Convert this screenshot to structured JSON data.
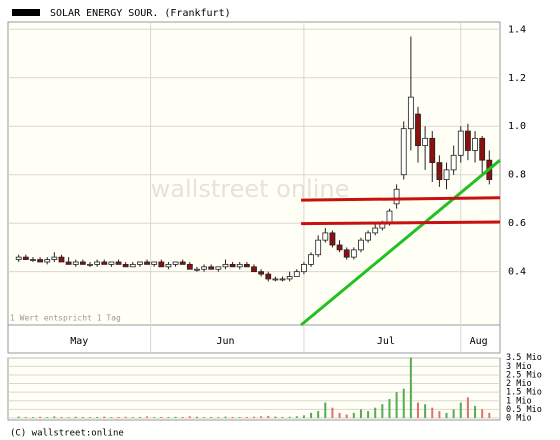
{
  "chart_data": [
    {
      "type": "candlestick",
      "legend": "SOLAR ENERGY SOUR. (Frankfurt)",
      "annotation": "1 Wert entspricht 1 Tag",
      "watermark": "wallstreet online",
      "open": [
        0.45,
        0.46,
        0.45,
        0.45,
        0.44,
        0.45,
        0.46,
        0.44,
        0.43,
        0.44,
        0.43,
        0.43,
        0.44,
        0.43,
        0.44,
        0.43,
        0.42,
        0.43,
        0.44,
        0.43,
        0.44,
        0.42,
        0.43,
        0.44,
        0.43,
        0.41,
        0.41,
        0.42,
        0.41,
        0.42,
        0.43,
        0.42,
        0.43,
        0.42,
        0.4,
        0.39,
        0.37,
        0.37,
        0.37,
        0.38,
        0.4,
        0.43,
        0.47,
        0.53,
        0.56,
        0.51,
        0.49,
        0.46,
        0.49,
        0.53,
        0.56,
        0.58,
        0.6,
        0.68,
        0.8,
        0.99,
        1.05,
        0.92,
        0.95,
        0.85,
        0.78,
        0.82,
        0.88,
        0.98,
        0.9,
        0.95,
        0.86
      ],
      "high": [
        0.47,
        0.47,
        0.46,
        0.46,
        0.46,
        0.48,
        0.47,
        0.46,
        0.45,
        0.45,
        0.44,
        0.45,
        0.45,
        0.44,
        0.45,
        0.44,
        0.44,
        0.44,
        0.45,
        0.44,
        0.45,
        0.44,
        0.44,
        0.45,
        0.44,
        0.42,
        0.43,
        0.43,
        0.42,
        0.45,
        0.44,
        0.44,
        0.44,
        0.43,
        0.41,
        0.4,
        0.38,
        0.38,
        0.4,
        0.41,
        0.44,
        0.48,
        0.55,
        0.58,
        0.57,
        0.53,
        0.5,
        0.5,
        0.54,
        0.57,
        0.6,
        0.61,
        0.66,
        0.76,
        1.02,
        1.37,
        1.08,
        1.0,
        0.98,
        0.88,
        0.85,
        0.92,
        1.0,
        1.01,
        0.98,
        0.96,
        0.9
      ],
      "low": [
        0.44,
        0.45,
        0.44,
        0.44,
        0.43,
        0.44,
        0.44,
        0.43,
        0.42,
        0.43,
        0.42,
        0.42,
        0.43,
        0.42,
        0.43,
        0.42,
        0.42,
        0.42,
        0.43,
        0.42,
        0.42,
        0.41,
        0.42,
        0.43,
        0.41,
        0.4,
        0.4,
        0.41,
        0.4,
        0.41,
        0.42,
        0.41,
        0.42,
        0.4,
        0.38,
        0.36,
        0.36,
        0.36,
        0.36,
        0.38,
        0.39,
        0.42,
        0.46,
        0.52,
        0.5,
        0.48,
        0.45,
        0.45,
        0.48,
        0.52,
        0.55,
        0.57,
        0.59,
        0.66,
        0.78,
        0.9,
        0.85,
        0.82,
        0.77,
        0.75,
        0.74,
        0.8,
        0.85,
        0.86,
        0.85,
        0.8,
        0.76
      ],
      "close": [
        0.46,
        0.45,
        0.45,
        0.44,
        0.45,
        0.46,
        0.44,
        0.43,
        0.44,
        0.43,
        0.43,
        0.44,
        0.43,
        0.44,
        0.43,
        0.42,
        0.43,
        0.44,
        0.43,
        0.44,
        0.42,
        0.43,
        0.44,
        0.43,
        0.41,
        0.41,
        0.42,
        0.41,
        0.42,
        0.43,
        0.42,
        0.43,
        0.42,
        0.4,
        0.39,
        0.37,
        0.37,
        0.37,
        0.38,
        0.4,
        0.43,
        0.47,
        0.53,
        0.56,
        0.51,
        0.49,
        0.46,
        0.49,
        0.53,
        0.56,
        0.58,
        0.6,
        0.65,
        0.74,
        0.99,
        1.12,
        0.92,
        0.95,
        0.85,
        0.78,
        0.82,
        0.88,
        0.98,
        0.9,
        0.95,
        0.86,
        0.78
      ],
      "up_color": "#ffffff",
      "down_color": "#8b1010",
      "xlim": [
        -1.5,
        67.5
      ],
      "xticks": [
        {
          "value": 8.5,
          "label": "May"
        },
        {
          "value": 29,
          "label": "Jun"
        },
        {
          "value": 51.5,
          "label": "Jul"
        },
        {
          "value": 64.5,
          "label": "Aug"
        }
      ],
      "xgrid": [
        18.5,
        40,
        62
      ],
      "ylim": [
        0.18,
        1.43
      ],
      "yticks": [
        0.4,
        0.6,
        0.8,
        {
          "value": 1.0,
          "label": "1.0"
        },
        1.2,
        1.4
      ],
      "trendlines": [
        {
          "color": "#22c022",
          "x": [
            39.6,
            67.5
          ],
          "y": [
            0.18,
            0.86
          ]
        },
        {
          "color": "#c81010",
          "x": [
            39.6,
            67.5
          ],
          "y": [
            0.695,
            0.705
          ]
        },
        {
          "color": "#c81010",
          "x": [
            39.6,
            67.5
          ],
          "y": [
            0.598,
            0.605
          ]
        }
      ]
    },
    {
      "type": "bar",
      "values": [
        0.08,
        0.06,
        0.05,
        0.07,
        0.05,
        0.09,
        0.06,
        0.05,
        0.07,
        0.06,
        0.05,
        0.06,
        0.08,
        0.05,
        0.06,
        0.07,
        0.05,
        0.06,
        0.09,
        0.05,
        0.06,
        0.05,
        0.07,
        0.06,
        0.1,
        0.07,
        0.05,
        0.06,
        0.05,
        0.08,
        0.06,
        0.05,
        0.06,
        0.07,
        0.1,
        0.12,
        0.08,
        0.06,
        0.07,
        0.1,
        0.15,
        0.3,
        0.4,
        0.9,
        0.6,
        0.3,
        0.2,
        0.3,
        0.5,
        0.4,
        0.6,
        0.8,
        1.1,
        1.5,
        1.7,
        3.5,
        0.9,
        0.8,
        0.6,
        0.4,
        0.3,
        0.5,
        0.9,
        1.2,
        0.7,
        0.5,
        0.3
      ],
      "up_color": "#55aa55",
      "down_color": "#e07070",
      "ylim": [
        0,
        3.6
      ],
      "yticks": [
        {
          "value": 3.5,
          "label": "3.5 Mio"
        },
        {
          "value": 3,
          "label": "3 Mio"
        },
        {
          "value": 2.5,
          "label": "2.5 Mio"
        },
        {
          "value": 2,
          "label": "2 Mio"
        },
        {
          "value": 1.5,
          "label": "1.5 Mio"
        },
        {
          "value": 1,
          "label": "1 Mio"
        },
        {
          "value": 0.5,
          "label": "0.5 Mio"
        },
        {
          "value": 0,
          "label": "0 Mio"
        }
      ]
    }
  ],
  "footer": "(C) wallstreet:online"
}
